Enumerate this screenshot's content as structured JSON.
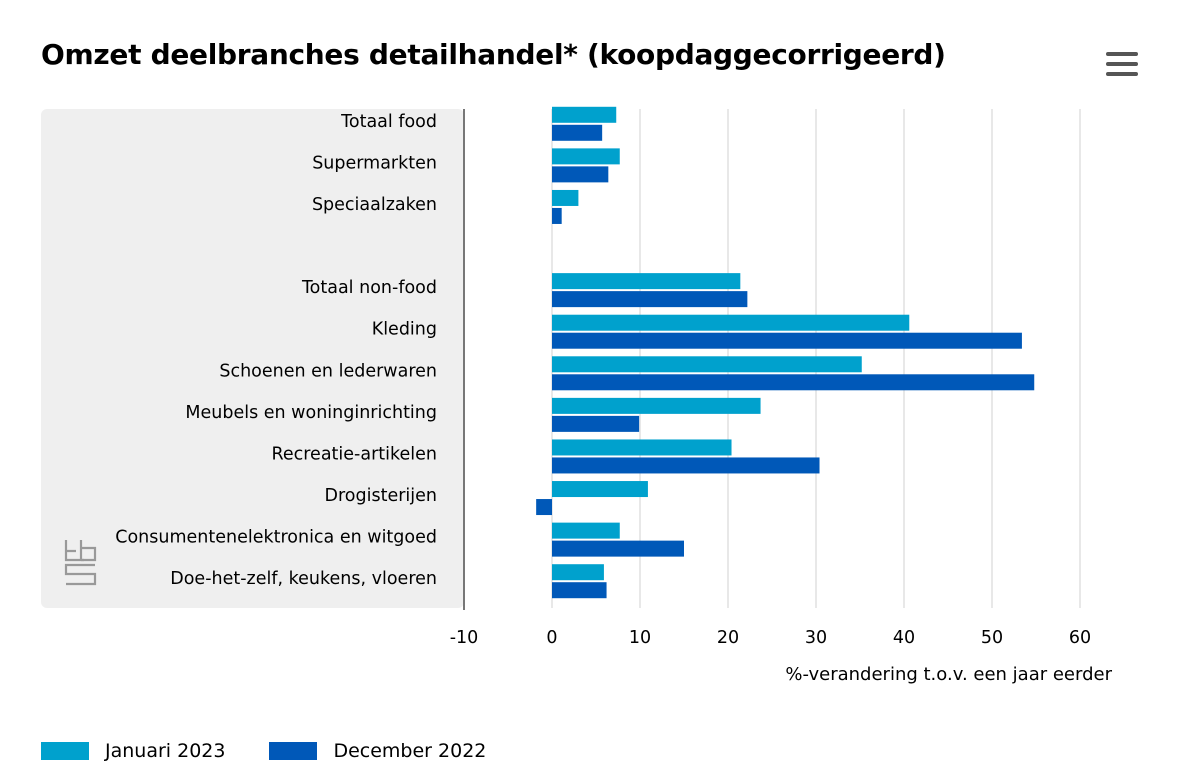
{
  "header": {
    "title": "Omzet deelbranches detailhandel* (koopdaggecorrigeerd)",
    "menu_icon": "hamburger-menu-icon"
  },
  "colors": {
    "series1": "#00a1cd",
    "series2": "#0058b8",
    "label_panel": "#efefef",
    "gridline": "#d0d0d0",
    "axis": "#777777",
    "logo": "#999999"
  },
  "logo": {
    "icon": "cbs-logo-icon"
  },
  "chart_data": {
    "type": "bar",
    "orientation": "horizontal",
    "categories": [
      "Totaal food",
      "Supermarkten",
      "Speciaalzaken",
      "",
      "Totaal non-food",
      "Kleding",
      "Schoenen en lederwaren",
      "Meubels en woninginrichting",
      "Recreatie-artikelen",
      "Drogisterijen",
      "Consumentenelektronica en witgoed",
      "Doe-het-zelf, keukens, vloeren"
    ],
    "series": [
      {
        "name": "Januari 2023",
        "values": [
          7.3,
          7.7,
          3.0,
          null,
          21.4,
          40.6,
          35.2,
          23.7,
          20.4,
          10.9,
          7.7,
          5.9
        ]
      },
      {
        "name": "December 2022",
        "values": [
          5.7,
          6.4,
          1.1,
          null,
          22.2,
          53.4,
          54.8,
          9.9,
          30.4,
          -1.8,
          15.0,
          6.2
        ]
      }
    ],
    "x_ticks": [
      -10,
      0,
      10,
      20,
      30,
      40,
      50,
      60
    ],
    "xlim": [
      -10,
      60
    ],
    "xlabel": "%-verandering t.o.v. een jaar eerder",
    "grid": true,
    "legend_position": "bottom-left"
  }
}
